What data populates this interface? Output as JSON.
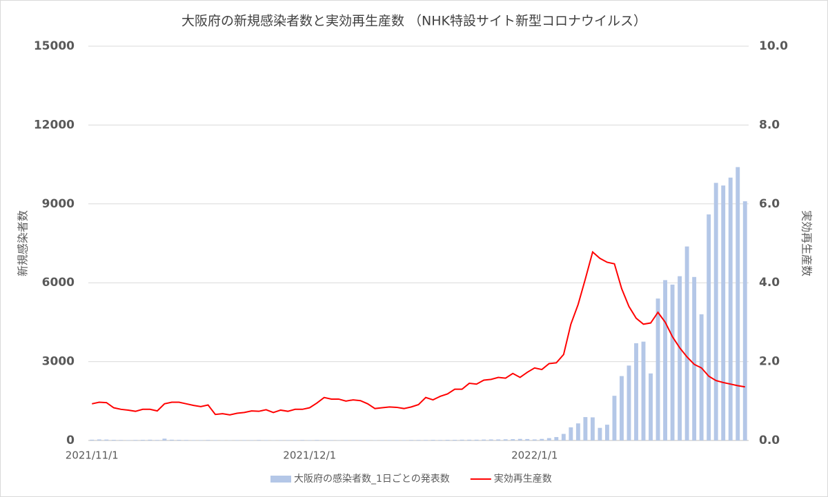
{
  "chart_data": {
    "type": "bar+line",
    "title": "大阪府の新規感染者数と実効再生産数 （NHK特設サイト新型コロナウイルス）",
    "y_label": "新規感染者数",
    "y2_label": "実効再生産数",
    "categories": [
      "2021/11/1",
      null,
      null,
      null,
      null,
      null,
      null,
      null,
      null,
      null,
      null,
      null,
      null,
      null,
      null,
      null,
      null,
      null,
      null,
      null,
      null,
      null,
      null,
      null,
      null,
      null,
      null,
      null,
      null,
      null,
      "2021/12/1",
      null,
      null,
      null,
      null,
      null,
      null,
      null,
      null,
      null,
      null,
      null,
      null,
      null,
      null,
      null,
      null,
      null,
      null,
      null,
      null,
      null,
      null,
      null,
      null,
      null,
      null,
      null,
      null,
      null,
      null,
      "2022/1/1",
      null,
      null,
      null,
      null,
      null,
      null,
      null,
      null,
      null,
      null,
      null,
      null,
      null,
      null,
      null,
      null,
      null,
      null,
      null,
      null,
      null,
      null,
      null,
      null,
      null,
      null,
      null,
      null,
      null
    ],
    "series": [
      {
        "name": "大阪府の感染者数_1日ごとの発表数",
        "color": "#b4c7e7",
        "axis": "y",
        "values": [
          30,
          40,
          35,
          25,
          20,
          15,
          20,
          25,
          30,
          20,
          70,
          30,
          25,
          20,
          15,
          15,
          20,
          15,
          10,
          10,
          15,
          15,
          15,
          20,
          15,
          10,
          15,
          15,
          15,
          20,
          15,
          20,
          15,
          15,
          10,
          15,
          15,
          15,
          15,
          10,
          15,
          15,
          15,
          15,
          20,
          20,
          20,
          25,
          20,
          25,
          25,
          30,
          30,
          30,
          35,
          40,
          40,
          45,
          50,
          60,
          55,
          40,
          60,
          90,
          130,
          250,
          500,
          650,
          890,
          880,
          480,
          600,
          1700,
          2450,
          2850,
          3700,
          3760,
          2550,
          5400,
          6100,
          5930,
          6250,
          7380,
          6220,
          4800,
          8600,
          9800,
          9700,
          10000,
          10400,
          9100
        ]
      },
      {
        "name": "実効再生産数",
        "color": "#ff0000",
        "axis": "y2",
        "values": [
          0.93,
          0.97,
          0.96,
          0.83,
          0.79,
          0.77,
          0.74,
          0.79,
          0.79,
          0.75,
          0.93,
          0.97,
          0.97,
          0.93,
          0.89,
          0.86,
          0.9,
          0.66,
          0.68,
          0.65,
          0.69,
          0.71,
          0.75,
          0.74,
          0.78,
          0.71,
          0.77,
          0.74,
          0.79,
          0.79,
          0.83,
          0.95,
          1.09,
          1.05,
          1.05,
          1.0,
          1.03,
          1.01,
          0.93,
          0.81,
          0.83,
          0.85,
          0.84,
          0.81,
          0.85,
          0.91,
          1.09,
          1.03,
          1.12,
          1.18,
          1.3,
          1.3,
          1.45,
          1.43,
          1.53,
          1.55,
          1.6,
          1.58,
          1.7,
          1.6,
          1.73,
          1.84,
          1.8,
          1.95,
          1.97,
          2.18,
          2.95,
          3.45,
          4.1,
          4.78,
          4.62,
          4.52,
          4.48,
          3.85,
          3.4,
          3.1,
          2.95,
          2.98,
          3.25,
          3.0,
          2.63,
          2.35,
          2.12,
          1.93,
          1.84,
          1.63,
          1.52,
          1.47,
          1.43,
          1.39,
          1.36
        ]
      }
    ],
    "ylim": [
      0,
      15000
    ],
    "yticks": [
      0,
      3000,
      6000,
      9000,
      12000,
      15000
    ],
    "y2lim": [
      0,
      10
    ],
    "y2ticks": [
      {
        "value": 0,
        "label": "0.0"
      },
      {
        "value": 2,
        "label": "2.0"
      },
      {
        "value": 4,
        "label": "4.0"
      },
      {
        "value": 6,
        "label": "6.0"
      },
      {
        "value": 8,
        "label": "8.0"
      },
      {
        "value": 10,
        "label": "10.0"
      }
    ],
    "grid": true,
    "legend": "bottom"
  }
}
